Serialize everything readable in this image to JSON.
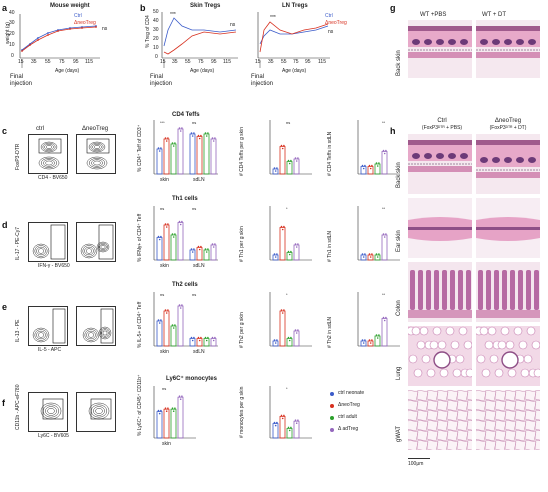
{
  "panel_letters": [
    "a",
    "b",
    "c",
    "d",
    "e",
    "f",
    "g",
    "h"
  ],
  "panel_a": {
    "title": "Mouse weight",
    "ylabel": "weight (g)",
    "xlabel": "Age (days)",
    "yticks": [
      "0",
      "10",
      "20",
      "30",
      "40"
    ],
    "xticks": [
      "15",
      "35",
      "55",
      "75",
      "95",
      "115"
    ],
    "legend": [
      "Ctrl",
      "ΔneoTreg"
    ],
    "ns": "ns",
    "final": "Final\ninjection"
  },
  "panel_b": {
    "title_skin": "Skin Tregs",
    "title_ln": "LN Tregs",
    "ylabel": "% Treg of CD4",
    "xlabel": "Age (days)",
    "yticks": [
      "0",
      "10",
      "20",
      "30",
      "40",
      "50"
    ],
    "xticks": [
      "15",
      "35",
      "55",
      "75",
      "95",
      "115"
    ],
    "legend": [
      "Ctrl",
      "ΔneoTreg"
    ],
    "final": "Final\ninjection",
    "stars": "***",
    "ns": "ns"
  },
  "panel_c": {
    "title": "CD4 Teffs",
    "col_ctrl": "ctrl",
    "col_neo": "ΔneoTreg",
    "flow_y": "FoxP3-DTR",
    "flow_x": "CD4 - BV650",
    "bar_ylabel": "% CD4⁺ Teff of CD3⁺",
    "bar_groups": [
      "skin",
      "sdLN"
    ],
    "count_skin_label": "# CD4 Teffs per g skin",
    "count_ln_label": "# CD4 Teffs in sdLN",
    "yticks_skin": [
      "0",
      "2 × 10⁵",
      "4 × 10⁵",
      "6 × 10⁵"
    ],
    "yticks_ln": [
      "0",
      "5.0 × 10⁵",
      "1.0 × 10⁶",
      "1.5 × 10⁶"
    ]
  },
  "panel_d": {
    "title": "Th1 cells",
    "flow_y": "IL-17 - PE-Cy7",
    "flow_x": "IFN-γ - BV650",
    "bar_ylabel": "% IFNγ+ of CD4⁺ Teff",
    "bar_groups": [
      "skin",
      "sdLN"
    ],
    "count_skin_label": "# Th1 per g skin",
    "count_ln_label": "# Th1 in sdLN",
    "yticks_skin": [
      "0",
      "5 × 10⁴",
      "1 × 10⁵",
      "1.5 × 10⁵",
      "2 × 10⁵"
    ],
    "yticks_ln": [
      "0",
      "5 × 10⁴",
      "1 × 10⁵",
      "1.5 × 10⁵",
      "2 × 10⁵"
    ]
  },
  "panel_e": {
    "title": "Th2 cells",
    "flow_y": "IL-13 - PE",
    "flow_x": "IL-5 - APC",
    "bar_ylabel": "% IL-5+ of CD4⁺ Teff",
    "bar_groups": [
      "skin",
      "sdLN"
    ],
    "count_skin_label": "# Th2 per g skin",
    "count_ln_label": "# Th2 in sdLN",
    "yticks_skin": [
      "0",
      "5 × 10³",
      "1 × 10⁴",
      "1.5 × 10⁴",
      "2 × 10⁴"
    ],
    "yticks_ln": [
      "0",
      "2 × 10³",
      "4 × 10³",
      "6 × 10³",
      "8 × 10³"
    ]
  },
  "panel_f": {
    "title": "Ly6C⁺ monocytes",
    "flow_y": "CD11b - APC-eF780",
    "flow_x": "Ly6C - BV605",
    "bar_ylabel": "% Ly6C⁺ of CD45⁺ CD11b⁺",
    "bar_groups": [
      "skin"
    ],
    "count_skin_label": "# monocytes per g skin",
    "yticks_skin": [
      "0",
      "1 × 10⁵",
      "2 × 10⁵",
      "3 × 10⁵",
      "4 × 10⁵"
    ]
  },
  "legend_main": [
    {
      "label": "ctrl neonate",
      "color": "#3b5bc9"
    },
    {
      "label": "ΔneoTreg",
      "color": "#d7301f"
    },
    {
      "label": "ctrl adult",
      "color": "#2ca02c"
    },
    {
      "label": "Δ adTreg",
      "color": "#9467bd"
    }
  ],
  "panel_g": {
    "col1": "WT +PBS",
    "col2": "WT + DT",
    "row": "Back skin"
  },
  "panel_h": {
    "col1": "Ctrl",
    "col1b": "(FoxP3ᴰᵀᴿ + PBS)",
    "col2": "ΔneoTreg",
    "col2b": "(FoxP3ᴰᵀᴿ + DT)",
    "rows": [
      "Back skin",
      "Ear skin",
      "Colon",
      "Lung",
      "gWAT"
    ],
    "scale": "100μm"
  },
  "sig": {
    "ns": "ns",
    "one": "*",
    "two": "**",
    "three": "***"
  }
}
